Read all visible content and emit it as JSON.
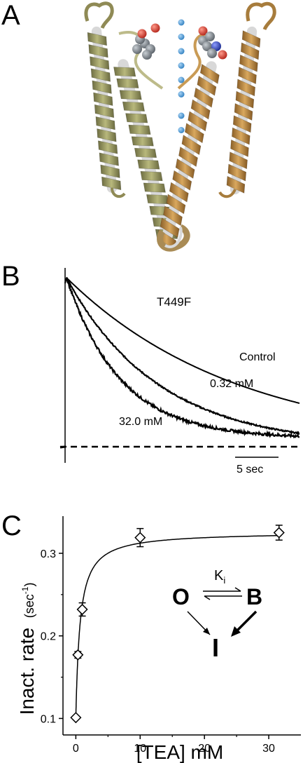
{
  "panels": {
    "a": {
      "label": "A"
    },
    "b": {
      "label": "B"
    },
    "c": {
      "label": "C"
    }
  },
  "structure": {
    "ion_count": 8,
    "colors": {
      "left_helix": "#9a9a63",
      "right_helix": "#b98a45",
      "ion": "#3f8fcf",
      "ligand_carbon": "#7d858c",
      "ligand_oxygen": "#d63a2c",
      "ligand_nitrogen": "#2a3fb0"
    }
  },
  "chart_data": [
    {
      "type": "line",
      "panel": "B",
      "title": "T449F",
      "time_axis": {
        "range_sec": [
          0,
          19
        ],
        "scale_bar": {
          "length_sec": 5,
          "label": "5 sec"
        }
      },
      "normalized_current_range": [
        0,
        1
      ],
      "series": [
        {
          "name": "Control",
          "label": "Control",
          "tau_sec": 14.0,
          "steady_state": 0.0,
          "noise": 0.0
        },
        {
          "name": "0.32 mM",
          "label": "0.32 mM",
          "tau_sec": 7.5,
          "steady_state": 0.0,
          "noise": 0.004
        },
        {
          "name": "32.0 mM",
          "label": "32.0 mM",
          "tau_sec": 4.4,
          "steady_state": 0.05,
          "noise": 0.008
        }
      ],
      "baseline": {
        "style": "dashed",
        "value": 0
      }
    },
    {
      "type": "scatter",
      "panel": "C",
      "xlabel": "[TEA] mM",
      "ylabel_main": "Inact. rate",
      "ylabel_unit": "(sec",
      "ylabel_sup": "-1",
      "ylabel_close": ")",
      "xlim": [
        -2,
        35
      ],
      "ylim": [
        0.08,
        0.345
      ],
      "x_ticks": [
        0,
        10,
        20,
        30
      ],
      "x_tick_labels": [
        "0",
        "10",
        "20",
        "30"
      ],
      "y_ticks": [
        0.1,
        0.2,
        0.3
      ],
      "y_tick_labels": [
        "0.1",
        "0.2",
        "0.3"
      ],
      "points": [
        {
          "x": 0,
          "y": 0.101,
          "err": 0.002
        },
        {
          "x": 0.32,
          "y": 0.177,
          "err": 0.004
        },
        {
          "x": 1.0,
          "y": 0.232,
          "err": 0.008
        },
        {
          "x": 10.0,
          "y": 0.319,
          "err": 0.011
        },
        {
          "x": 31.6,
          "y": 0.325,
          "err": 0.009
        }
      ],
      "fit": {
        "r0": 0.101,
        "rmax": 0.326,
        "k_mM": 0.65
      },
      "scheme": {
        "state_open": "O",
        "state_blocked": "B",
        "state_inactivated": "I",
        "constant_main": "K",
        "constant_sub": "i"
      }
    }
  ]
}
